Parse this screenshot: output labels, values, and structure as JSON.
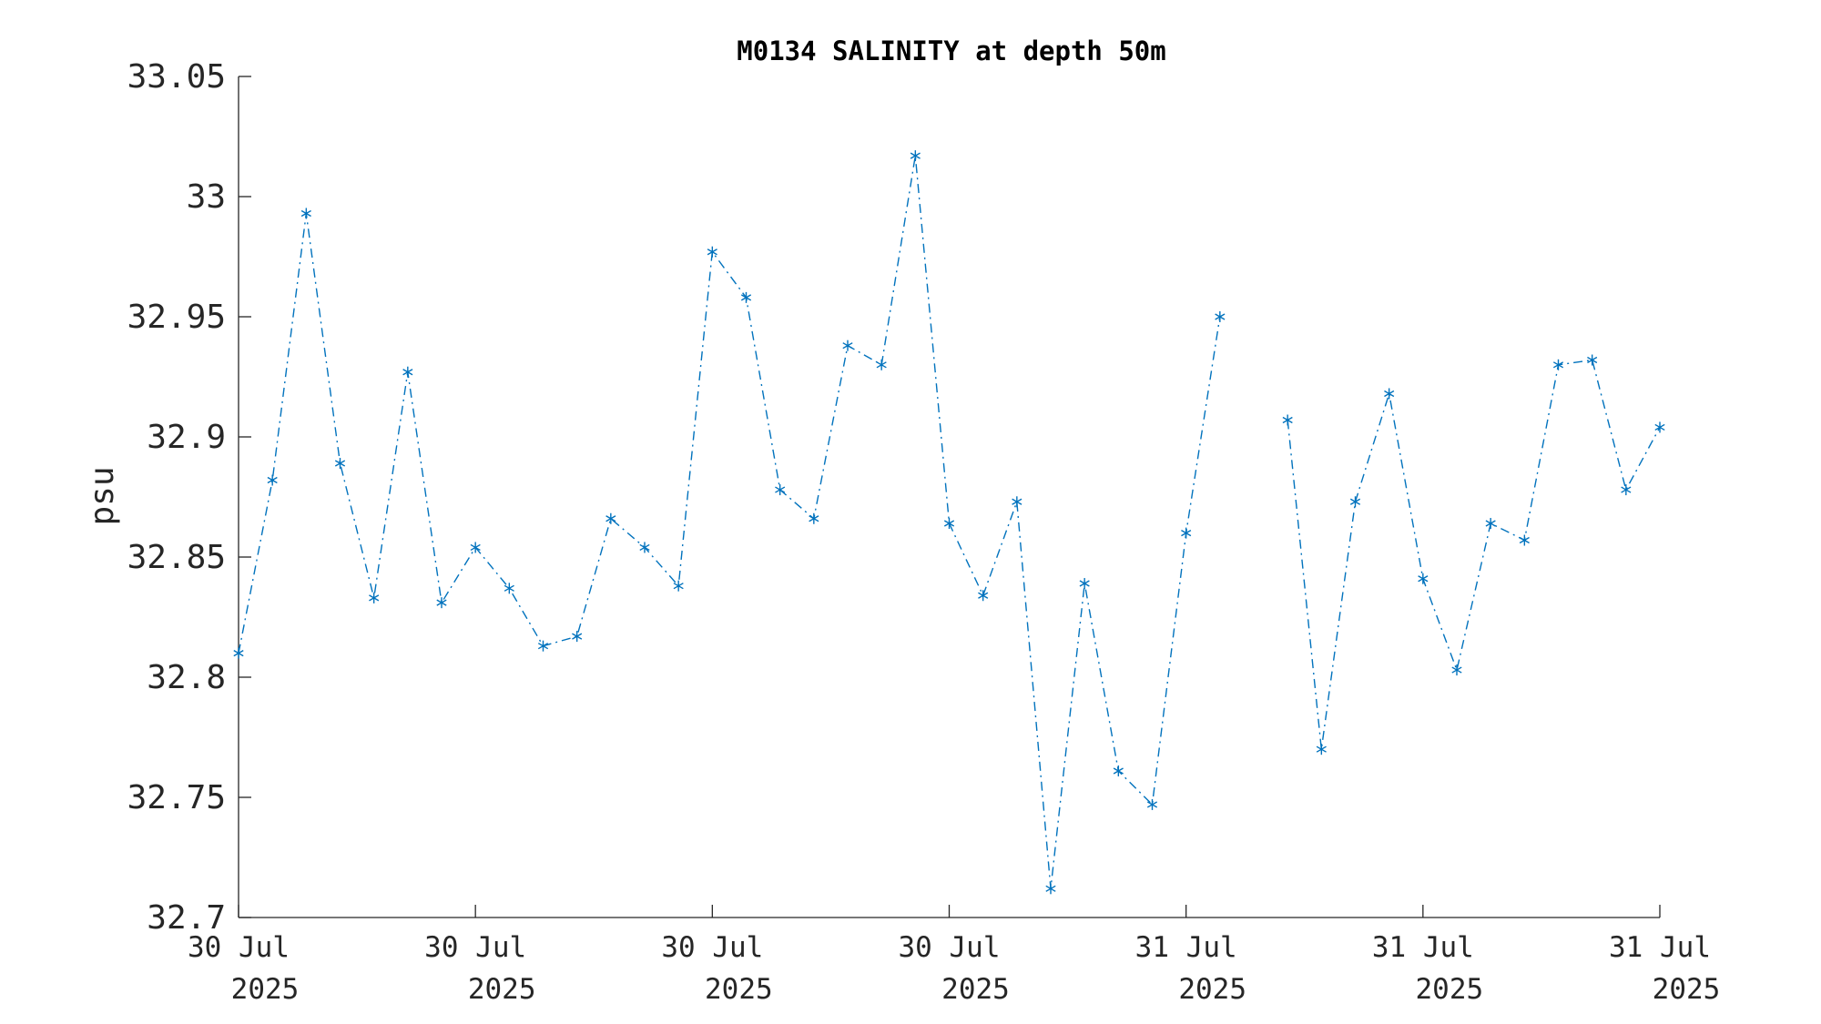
{
  "chart_data": {
    "type": "line",
    "title": "M0134 SALINITY at depth 50m",
    "xlabel": "",
    "ylabel": "psu",
    "ylim": [
      32.7,
      33.05
    ],
    "yticks": [
      "32.7",
      "32.75",
      "32.8",
      "32.85",
      "32.9",
      "32.95",
      "33",
      "33.05"
    ],
    "xticks": [
      {
        "line1": "30 Jul",
        "line2": "2025"
      },
      {
        "line1": "30 Jul",
        "line2": "2025"
      },
      {
        "line1": "30 Jul",
        "line2": "2025"
      },
      {
        "line1": "30 Jul",
        "line2": "2025"
      },
      {
        "line1": "31 Jul",
        "line2": "2025"
      },
      {
        "line1": "31 Jul",
        "line2": "2025"
      },
      {
        "line1": "31 Jul",
        "line2": "2025"
      }
    ],
    "grid": false,
    "line_style": "dash-dot",
    "marker": "asterisk",
    "series_color": "#0072BD",
    "series": [
      {
        "name": "",
        "values": [
          32.81,
          32.882,
          32.993,
          32.889,
          32.833,
          32.927,
          32.831,
          32.854,
          32.837,
          32.813,
          32.817,
          32.866,
          32.854,
          32.838,
          32.977,
          32.958,
          32.878,
          32.866,
          32.938,
          32.93,
          33.017,
          32.864,
          32.834,
          32.873,
          32.712,
          32.839,
          32.761,
          32.747,
          32.86,
          32.95,
          null,
          32.907,
          32.77,
          32.873,
          32.918,
          32.841,
          32.803,
          32.864,
          32.857,
          32.93,
          32.932,
          32.878,
          32.904
        ]
      }
    ]
  }
}
